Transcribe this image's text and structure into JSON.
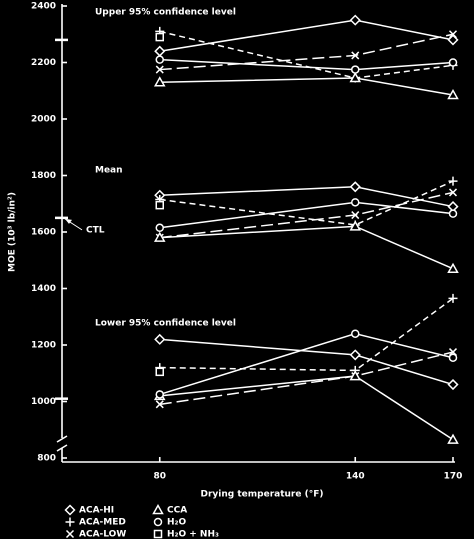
{
  "chart_data": {
    "type": "line",
    "y_label": "MOE (10³ lb/in²)",
    "x_label": "Drying temperature (°F)",
    "annotations": [
      "Upper 95% confidence level",
      "Mean",
      "Lower 95% confidence level"
    ],
    "x": [
      80,
      140,
      170
    ],
    "xlim": [
      50,
      170
    ],
    "xticks": [
      80,
      140,
      170
    ],
    "ylim": [
      800,
      2400
    ],
    "yticks": [
      800,
      1000,
      1200,
      1400,
      1600,
      1800,
      2000,
      2200,
      2400
    ],
    "color": "#ffffff",
    "ctl": {
      "label": "CTL",
      "mean": 1650,
      "upper": 2280,
      "lower": 1010
    },
    "series": [
      {
        "name": "ACA-HI",
        "marker": "diamond",
        "line_style": "solid",
        "upper": [
          2240,
          2350,
          2280
        ],
        "mean": [
          1730,
          1760,
          1690
        ],
        "lower": [
          1220,
          1165,
          1060
        ]
      },
      {
        "name": "ACA-MED",
        "marker": "plus",
        "line_style": "dashed",
        "upper": [
          2310,
          2145,
          2190
        ],
        "mean": [
          1715,
          1625,
          1780
        ],
        "lower": [
          1120,
          1110,
          1365
        ]
      },
      {
        "name": "ACA-LOW",
        "marker": "x",
        "line_style": "long-dashed",
        "upper": [
          2175,
          2225,
          2300
        ],
        "mean": [
          1580,
          1660,
          1740
        ],
        "lower": [
          990,
          1090,
          1175
        ]
      },
      {
        "name": "CCA",
        "marker": "triangle",
        "line_style": "solid",
        "upper": [
          2130,
          2145,
          2085
        ],
        "mean": [
          1580,
          1620,
          1470
        ],
        "lower": [
          1020,
          1090,
          865
        ]
      },
      {
        "name": "H₂O",
        "marker": "circle",
        "line_style": "solid",
        "upper": [
          2210,
          2175,
          2200
        ],
        "mean": [
          1615,
          1705,
          1665
        ],
        "lower": [
          1025,
          1240,
          1155
        ]
      },
      {
        "name": "H₂O + NH₃",
        "marker": "square",
        "line_style": "solid",
        "upper": [
          2290,
          null,
          null
        ],
        "mean": [
          1695,
          null,
          null
        ],
        "lower": [
          1105,
          null,
          null
        ]
      }
    ]
  }
}
